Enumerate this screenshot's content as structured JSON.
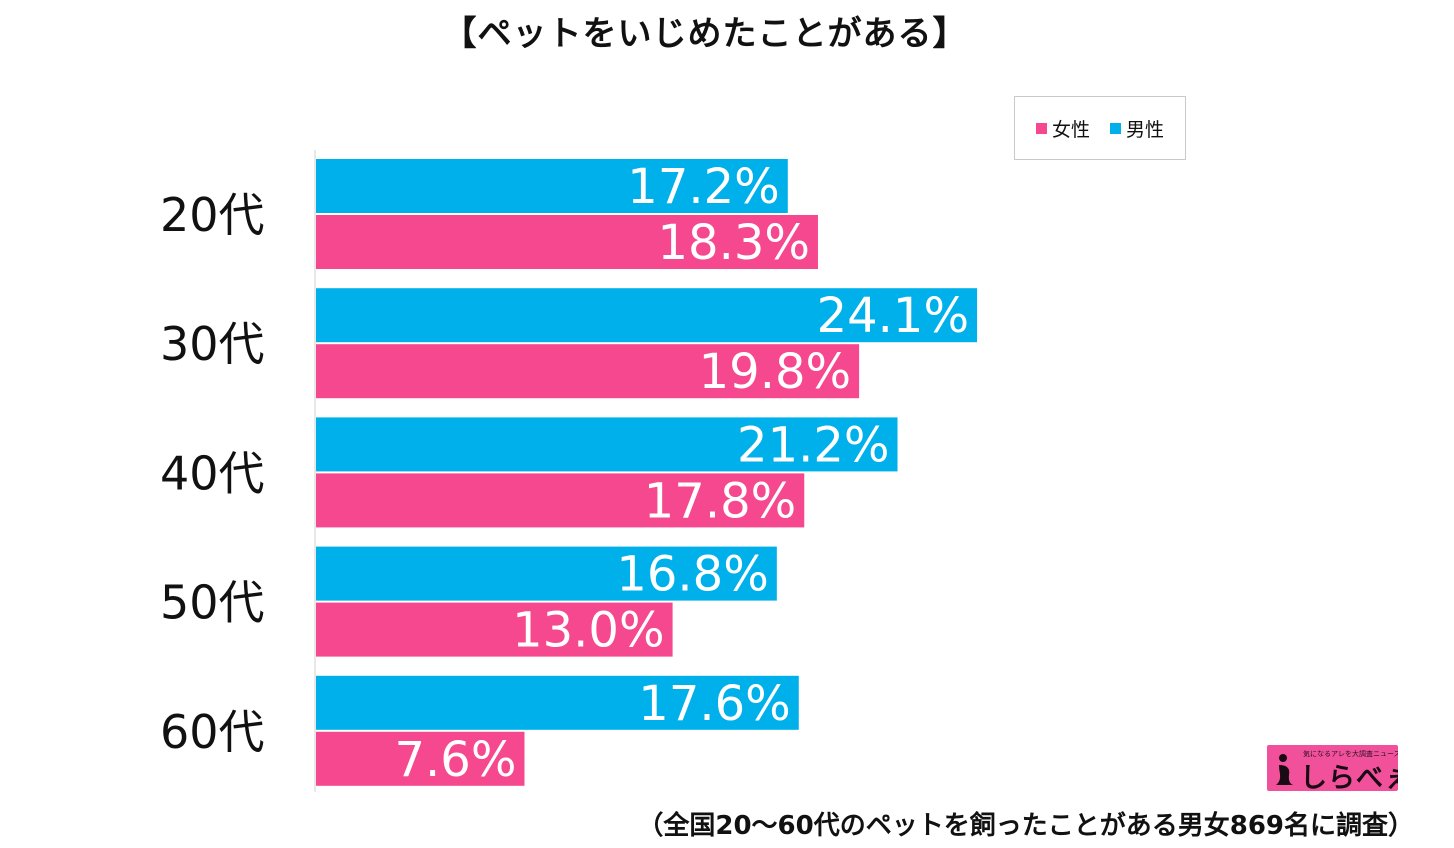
{
  "chart_data": {
    "type": "bar",
    "orientation": "horizontal",
    "title": "【ペットをいじめたことがある】",
    "categories": [
      "20代",
      "30代",
      "40代",
      "50代",
      "60代"
    ],
    "series": [
      {
        "name": "男性",
        "color": "#00b0ea",
        "values": [
          17.2,
          24.1,
          21.2,
          16.8,
          17.6
        ]
      },
      {
        "name": "女性",
        "color": "#f5488e",
        "values": [
          18.3,
          19.8,
          17.8,
          13.0,
          7.6
        ]
      }
    ],
    "value_labels": {
      "男性": [
        "17.2%",
        "24.1%",
        "21.2%",
        "16.8%",
        "17.6%"
      ],
      "女性": [
        "18.3%",
        "19.8%",
        "17.8%",
        "13.0%",
        "7.6%"
      ]
    },
    "xlim": [
      0,
      30
    ],
    "grid": false,
    "legend_position": "top-right",
    "legend_order": [
      "女性",
      "男性"
    ],
    "footnote": "（全国20～60代のペットを飼ったことがある男女869名に調査）"
  },
  "logo": {
    "tagline": "気になるアレを大調査ニュース!",
    "text": "しらべぇ"
  }
}
